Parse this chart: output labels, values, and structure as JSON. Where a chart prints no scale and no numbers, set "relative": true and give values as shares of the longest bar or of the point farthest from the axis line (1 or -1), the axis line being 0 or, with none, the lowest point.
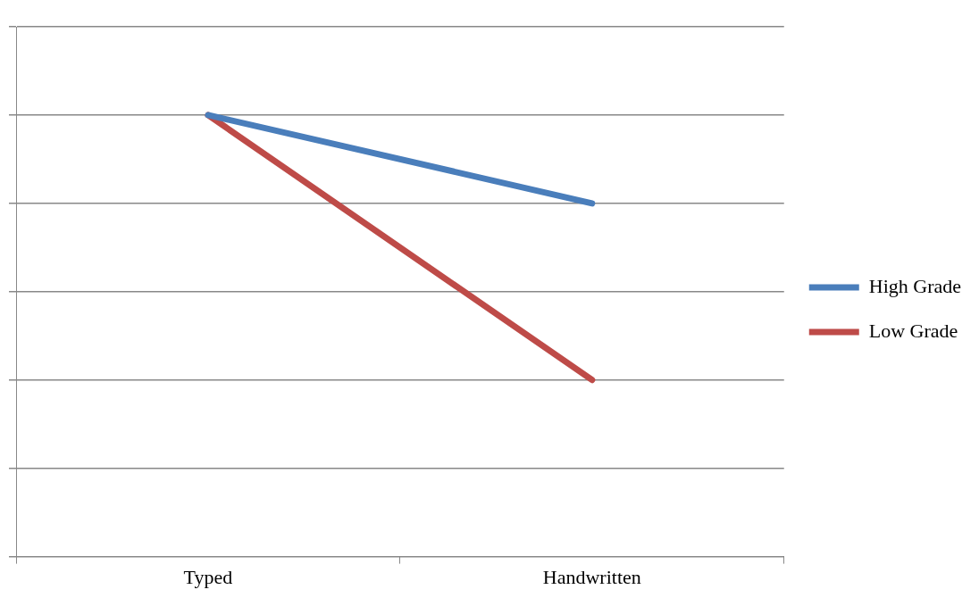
{
  "chart_data": {
    "type": "line",
    "relative": true,
    "categories": [
      "Typed",
      "Handwritten"
    ],
    "series": [
      {
        "name": "High Grade",
        "color": "#4a7ebb",
        "values": [
          1,
          0.8
        ]
      },
      {
        "name": "Low Grade",
        "color": "#be4b48",
        "values": [
          1,
          0.4
        ]
      }
    ],
    "grid": "y",
    "legend": "right",
    "marker": "none",
    "line_style": "solid"
  }
}
